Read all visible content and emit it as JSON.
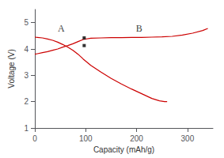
{
  "chart_data": {
    "type": "line",
    "xlabel": "Capacity (mAh/g)",
    "ylabel": "Voltage (V)",
    "xlim": [
      0,
      350
    ],
    "ylim": [
      1,
      5.5
    ],
    "xticks": [
      0,
      100,
      200,
      300
    ],
    "yticks": [
      1,
      2,
      3,
      4,
      5
    ],
    "grid": false,
    "series": [
      {
        "type": "line",
        "color": "#cc0000",
        "x": [
          0,
          5,
          15,
          25,
          35,
          45,
          55,
          65,
          75,
          85,
          95,
          110,
          130,
          150,
          170,
          190,
          210,
          230,
          250,
          270,
          290,
          310,
          330,
          340
        ],
        "values": [
          3.8,
          3.82,
          3.86,
          3.9,
          3.95,
          4.0,
          4.07,
          4.13,
          4.2,
          4.28,
          4.36,
          4.41,
          4.42,
          4.43,
          4.43,
          4.44,
          4.44,
          4.45,
          4.46,
          4.48,
          4.53,
          4.6,
          4.7,
          4.78
        ]
      },
      {
        "type": "line",
        "color": "#cc0000",
        "x": [
          0,
          5,
          15,
          25,
          35,
          45,
          55,
          65,
          75,
          85,
          95,
          110,
          130,
          150,
          170,
          190,
          210,
          230,
          245,
          255,
          260
        ],
        "values": [
          4.45,
          4.44,
          4.42,
          4.38,
          4.33,
          4.26,
          4.17,
          4.07,
          3.95,
          3.8,
          3.62,
          3.38,
          3.12,
          2.88,
          2.67,
          2.48,
          2.3,
          2.12,
          2.03,
          2.0,
          2.0
        ]
      },
      {
        "type": "scatter",
        "marker": "square",
        "color": "#000000",
        "x": [
          97,
          97
        ],
        "values": [
          4.42,
          4.13
        ]
      }
    ],
    "annotations": [
      {
        "text": "A",
        "x": 52,
        "y": 4.95
      },
      {
        "text": "B",
        "x": 205,
        "y": 4.95
      }
    ]
  }
}
